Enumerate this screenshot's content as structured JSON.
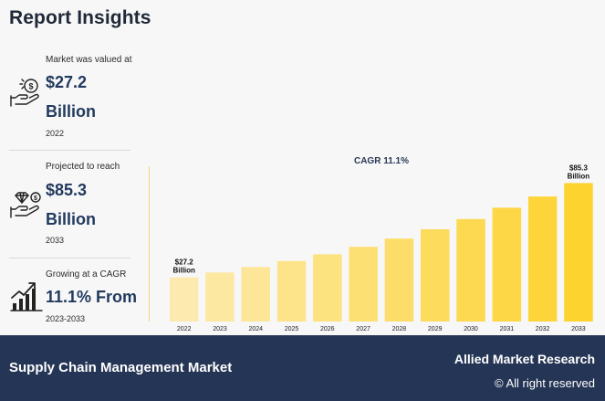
{
  "header": {
    "title": "Report Insights"
  },
  "stats": [
    {
      "label": "Market was valued at",
      "value": "$27.2",
      "unit": "Billion",
      "year": "2022",
      "icon": "money-hand-icon"
    },
    {
      "label": "Projected to reach",
      "value": "$85.3",
      "unit": "Billion",
      "year": "2033",
      "icon": "diamond-hand-icon"
    },
    {
      "label": "Growing at a CAGR",
      "value": "11.1% From",
      "unit": "",
      "year": "2023-2033",
      "icon": "growth-chart-icon"
    }
  ],
  "chart_data": {
    "type": "bar",
    "title": "CAGR 11.1%",
    "categories": [
      "2022",
      "2023",
      "2024",
      "2025",
      "2026",
      "2027",
      "2028",
      "2029",
      "2030",
      "2031",
      "2032",
      "2033"
    ],
    "values": [
      27.2,
      30.2,
      33.6,
      37.3,
      41.4,
      46.0,
      51.1,
      56.8,
      63.1,
      70.1,
      77.0,
      85.3
    ],
    "annotations": [
      {
        "category": "2022",
        "text": [
          "$27.2",
          "Billion"
        ]
      },
      {
        "category": "2033",
        "text": [
          "$85.3",
          "Billion"
        ]
      }
    ],
    "colors": {
      "start": "#fdeaae",
      "end": "#fdd32f"
    },
    "ylim": [
      0,
      90
    ],
    "xlabel": "",
    "ylabel": "",
    "grid": false,
    "legend": "none"
  },
  "footer": {
    "market": "Supply Chain Management Market",
    "brand": "Allied Market Research",
    "rights": "© All right reserved"
  }
}
